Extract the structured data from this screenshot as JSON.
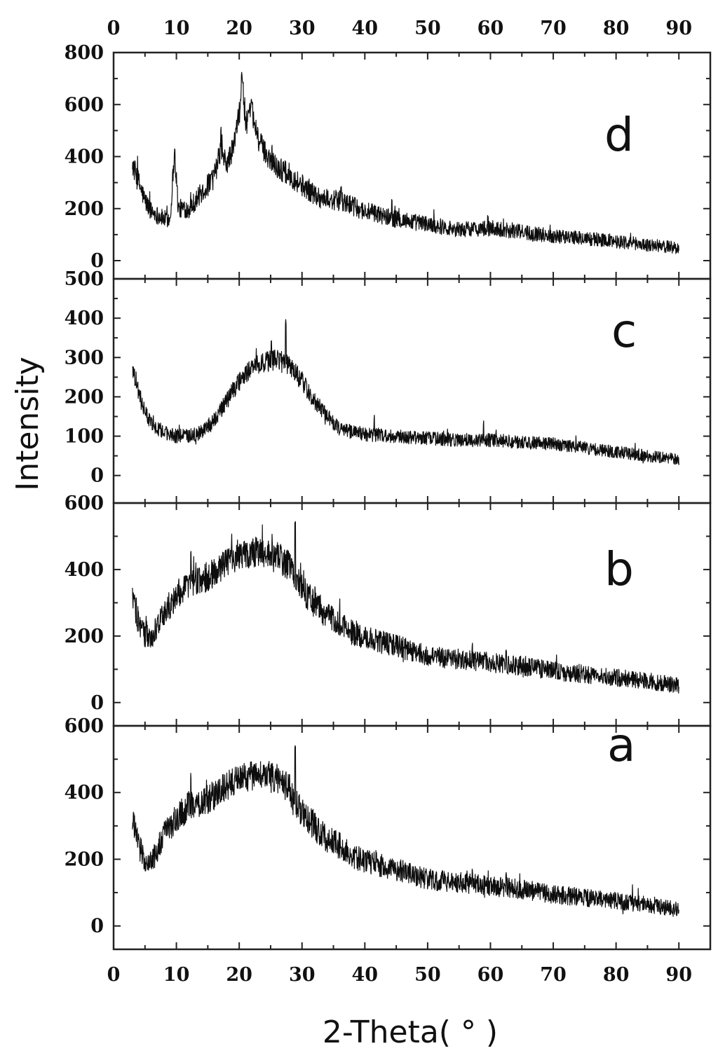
{
  "chart_data": {
    "type": "line",
    "xlabel": "2-Theta( °  )",
    "ylabel": "Intensity",
    "xlim": [
      0,
      95
    ],
    "x_ticks": [
      0,
      10,
      20,
      30,
      40,
      50,
      60,
      70,
      80,
      90
    ],
    "top_x_ticks": [
      0,
      10,
      20,
      30,
      40,
      50,
      60,
      70,
      80,
      90
    ],
    "x_range": [
      3,
      90
    ],
    "panels": [
      {
        "label": "d",
        "ylim": [
          -70,
          800
        ],
        "y_ticks": [
          0,
          200,
          400,
          600,
          800
        ],
        "noise": 45,
        "profile": [
          [
            3,
            370
          ],
          [
            4,
            300
          ],
          [
            5,
            230
          ],
          [
            6,
            190
          ],
          [
            8,
            160
          ],
          [
            9,
            160
          ],
          [
            9.7,
            420
          ],
          [
            10.3,
            200
          ],
          [
            12,
            200
          ],
          [
            14,
            260
          ],
          [
            16,
            320
          ],
          [
            17,
            420
          ],
          [
            18,
            370
          ],
          [
            19,
            430
          ],
          [
            20,
            560
          ],
          [
            20.5,
            690
          ],
          [
            21,
            520
          ],
          [
            22,
            580
          ],
          [
            23,
            470
          ],
          [
            24,
            420
          ],
          [
            26,
            360
          ],
          [
            28,
            330
          ],
          [
            30,
            290
          ],
          [
            33,
            240
          ],
          [
            36,
            230
          ],
          [
            40,
            190
          ],
          [
            45,
            160
          ],
          [
            50,
            140
          ],
          [
            55,
            120
          ],
          [
            60,
            125
          ],
          [
            65,
            110
          ],
          [
            70,
            95
          ],
          [
            75,
            85
          ],
          [
            80,
            75
          ],
          [
            85,
            60
          ],
          [
            90,
            50
          ]
        ],
        "spikes": [
          [
            17.1,
            520
          ],
          [
            20.4,
            730
          ],
          [
            22.1,
            620
          ],
          [
            25.2,
            450
          ],
          [
            36.2,
            290
          ],
          [
            44.3,
            240
          ],
          [
            59.6,
            180
          ]
        ]
      },
      {
        "label": "c",
        "ylim": [
          -70,
          500
        ],
        "y_ticks": [
          0,
          100,
          200,
          300,
          400,
          500
        ],
        "noise": 28,
        "profile": [
          [
            3,
            280
          ],
          [
            4,
            210
          ],
          [
            5,
            160
          ],
          [
            6,
            130
          ],
          [
            8,
            110
          ],
          [
            10,
            100
          ],
          [
            12,
            100
          ],
          [
            14,
            110
          ],
          [
            16,
            140
          ],
          [
            18,
            190
          ],
          [
            20,
            240
          ],
          [
            22,
            275
          ],
          [
            24,
            290
          ],
          [
            26,
            295
          ],
          [
            28,
            280
          ],
          [
            30,
            240
          ],
          [
            32,
            190
          ],
          [
            34,
            150
          ],
          [
            36,
            120
          ],
          [
            38,
            110
          ],
          [
            40,
            105
          ],
          [
            45,
            100
          ],
          [
            50,
            95
          ],
          [
            55,
            90
          ],
          [
            60,
            90
          ],
          [
            65,
            85
          ],
          [
            70,
            80
          ],
          [
            75,
            70
          ],
          [
            80,
            60
          ],
          [
            85,
            50
          ],
          [
            90,
            40
          ]
        ],
        "spikes": [
          [
            27.4,
            400
          ],
          [
            25.1,
            360
          ],
          [
            41.5,
            160
          ],
          [
            58.9,
            140
          ]
        ]
      },
      {
        "label": "b",
        "ylim": [
          -70,
          600
        ],
        "y_ticks": [
          0,
          200,
          400,
          600
        ],
        "noise": 45,
        "profile": [
          [
            3,
            320
          ],
          [
            4,
            240
          ],
          [
            5,
            200
          ],
          [
            6,
            190
          ],
          [
            7,
            230
          ],
          [
            8,
            270
          ],
          [
            10,
            320
          ],
          [
            12,
            360
          ],
          [
            14,
            370
          ],
          [
            16,
            390
          ],
          [
            18,
            420
          ],
          [
            20,
            440
          ],
          [
            22,
            450
          ],
          [
            24,
            450
          ],
          [
            26,
            440
          ],
          [
            28,
            410
          ],
          [
            30,
            340
          ],
          [
            32,
            300
          ],
          [
            34,
            260
          ],
          [
            36,
            240
          ],
          [
            38,
            210
          ],
          [
            40,
            195
          ],
          [
            45,
            170
          ],
          [
            50,
            140
          ],
          [
            55,
            130
          ],
          [
            60,
            120
          ],
          [
            65,
            110
          ],
          [
            70,
            95
          ],
          [
            75,
            85
          ],
          [
            80,
            75
          ],
          [
            85,
            65
          ],
          [
            90,
            50
          ]
        ],
        "spikes": [
          [
            28.9,
            550
          ],
          [
            12.3,
            460
          ],
          [
            57.1,
            180
          ],
          [
            62.5,
            170
          ]
        ]
      },
      {
        "label": "a",
        "ylim": [
          -70,
          600
        ],
        "y_ticks": [
          0,
          200,
          400,
          600
        ],
        "noise": 45,
        "profile": [
          [
            3,
            320
          ],
          [
            4,
            240
          ],
          [
            5,
            200
          ],
          [
            6,
            190
          ],
          [
            7,
            230
          ],
          [
            8,
            270
          ],
          [
            10,
            320
          ],
          [
            12,
            360
          ],
          [
            14,
            370
          ],
          [
            16,
            390
          ],
          [
            18,
            420
          ],
          [
            20,
            440
          ],
          [
            22,
            450
          ],
          [
            24,
            450
          ],
          [
            26,
            440
          ],
          [
            28,
            410
          ],
          [
            30,
            340
          ],
          [
            32,
            300
          ],
          [
            34,
            260
          ],
          [
            36,
            240
          ],
          [
            38,
            210
          ],
          [
            40,
            195
          ],
          [
            45,
            170
          ],
          [
            50,
            140
          ],
          [
            55,
            130
          ],
          [
            60,
            120
          ],
          [
            65,
            110
          ],
          [
            70,
            95
          ],
          [
            75,
            85
          ],
          [
            80,
            75
          ],
          [
            85,
            65
          ],
          [
            90,
            50
          ]
        ],
        "spikes": [
          [
            28.9,
            550
          ],
          [
            12.3,
            460
          ],
          [
            57.1,
            180
          ],
          [
            62.5,
            170
          ]
        ]
      }
    ]
  }
}
